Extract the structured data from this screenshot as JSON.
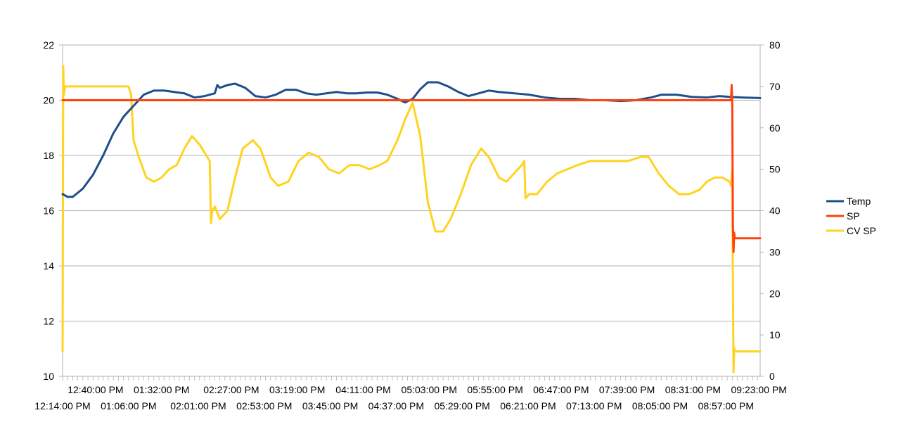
{
  "chart_data": {
    "type": "line",
    "title": "",
    "xlabel": "",
    "ylabel": "",
    "y2label": "",
    "grid": true,
    "legend_position": "right",
    "ylim": [
      10,
      22
    ],
    "y2lim": [
      0,
      80
    ],
    "y_ticks": [
      "10",
      "12",
      "14",
      "16",
      "18",
      "20",
      "22"
    ],
    "y2_ticks": [
      "0",
      "10",
      "20",
      "30",
      "40",
      "50",
      "60",
      "70",
      "80"
    ],
    "x_range": [
      "12:14:00 PM",
      "09:24:00 PM"
    ],
    "x_tick_labels_row1": [
      "12:40:00 PM",
      "01:32:00 PM",
      "02:27:00 PM",
      "03:19:00 PM",
      "04:11:00 PM",
      "05:03:00 PM",
      "05:55:00 PM",
      "06:47:00 PM",
      "07:39:00 PM",
      "08:31:00 PM",
      "09:23:00 PM"
    ],
    "x_tick_labels_row2": [
      "12:14:00 PM",
      "01:06:00 PM",
      "02:01:00 PM",
      "02:53:00 PM",
      "03:45:00 PM",
      "04:37:00 PM",
      "05:29:00 PM",
      "06:21:00 PM",
      "07:13:00 PM",
      "08:05:00 PM",
      "08:57:00 PM"
    ],
    "series": [
      {
        "name": "Temp",
        "axis": "left",
        "color": "#1f4e8c",
        "points": [
          [
            "12:14:00 PM",
            16.6
          ],
          [
            "12:18:00 PM",
            16.5
          ],
          [
            "12:22:00 PM",
            16.5
          ],
          [
            "12:30:00 PM",
            16.8
          ],
          [
            "12:38:00 PM",
            17.3
          ],
          [
            "12:46:00 PM",
            18.0
          ],
          [
            "12:54:00 PM",
            18.8
          ],
          [
            "01:02:00 PM",
            19.4
          ],
          [
            "01:10:00 PM",
            19.8
          ],
          [
            "01:18:00 PM",
            20.2
          ],
          [
            "01:26:00 PM",
            20.35
          ],
          [
            "01:34:00 PM",
            20.35
          ],
          [
            "01:42:00 PM",
            20.3
          ],
          [
            "01:50:00 PM",
            20.25
          ],
          [
            "01:58:00 PM",
            20.1
          ],
          [
            "02:06:00 PM",
            20.15
          ],
          [
            "02:14:00 PM",
            20.25
          ],
          [
            "02:16:00 PM",
            20.55
          ],
          [
            "02:18:00 PM",
            20.45
          ],
          [
            "02:24:00 PM",
            20.55
          ],
          [
            "02:30:00 PM",
            20.6
          ],
          [
            "02:38:00 PM",
            20.45
          ],
          [
            "02:46:00 PM",
            20.15
          ],
          [
            "02:54:00 PM",
            20.1
          ],
          [
            "03:02:00 PM",
            20.2
          ],
          [
            "03:10:00 PM",
            20.38
          ],
          [
            "03:18:00 PM",
            20.38
          ],
          [
            "03:26:00 PM",
            20.25
          ],
          [
            "03:34:00 PM",
            20.2
          ],
          [
            "03:42:00 PM",
            20.25
          ],
          [
            "03:50:00 PM",
            20.3
          ],
          [
            "03:58:00 PM",
            20.25
          ],
          [
            "04:06:00 PM",
            20.25
          ],
          [
            "04:14:00 PM",
            20.28
          ],
          [
            "04:22:00 PM",
            20.28
          ],
          [
            "04:30:00 PM",
            20.2
          ],
          [
            "04:38:00 PM",
            20.05
          ],
          [
            "04:44:00 PM",
            19.92
          ],
          [
            "04:50:00 PM",
            20.05
          ],
          [
            "04:56:00 PM",
            20.4
          ],
          [
            "05:02:00 PM",
            20.65
          ],
          [
            "05:10:00 PM",
            20.65
          ],
          [
            "05:18:00 PM",
            20.5
          ],
          [
            "05:26:00 PM",
            20.3
          ],
          [
            "05:34:00 PM",
            20.15
          ],
          [
            "05:42:00 PM",
            20.25
          ],
          [
            "05:50:00 PM",
            20.35
          ],
          [
            "05:58:00 PM",
            20.3
          ],
          [
            "06:10:00 PM",
            20.25
          ],
          [
            "06:22:00 PM",
            20.2
          ],
          [
            "06:34:00 PM",
            20.1
          ],
          [
            "06:46:00 PM",
            20.05
          ],
          [
            "06:58:00 PM",
            20.05
          ],
          [
            "07:10:00 PM",
            20.0
          ],
          [
            "07:22:00 PM",
            20.0
          ],
          [
            "07:34:00 PM",
            19.97
          ],
          [
            "07:46:00 PM",
            20.0
          ],
          [
            "07:58:00 PM",
            20.1
          ],
          [
            "08:06:00 PM",
            20.2
          ],
          [
            "08:18:00 PM",
            20.2
          ],
          [
            "08:30:00 PM",
            20.12
          ],
          [
            "08:42:00 PM",
            20.1
          ],
          [
            "08:52:00 PM",
            20.15
          ],
          [
            "09:00:00 PM",
            20.12
          ],
          [
            "09:10:00 PM",
            20.1
          ],
          [
            "09:24:00 PM",
            20.08
          ]
        ]
      },
      {
        "name": "SP",
        "axis": "left",
        "color": "#ff420e",
        "points": [
          [
            "12:14:00 PM",
            20.0
          ],
          [
            "09:01:00 PM",
            20.0
          ],
          [
            "09:01:30 PM",
            20.55
          ],
          [
            "09:02:00 PM",
            19.9
          ],
          [
            "09:02:30 PM",
            15.5
          ],
          [
            "09:03:00 PM",
            14.5
          ],
          [
            "09:03:30 PM",
            15.2
          ],
          [
            "09:04:00 PM",
            15.0
          ],
          [
            "09:05:00 PM",
            15.0
          ],
          [
            "09:24:00 PM",
            15.0
          ]
        ]
      },
      {
        "name": "CV SP",
        "axis": "right",
        "color": "#ffd320",
        "points": [
          [
            "12:14:00 PM",
            6
          ],
          [
            "12:14:30 PM",
            75
          ],
          [
            "12:15:00 PM",
            68
          ],
          [
            "12:16:00 PM",
            70
          ],
          [
            "12:20:00 PM",
            70
          ],
          [
            "01:06:00 PM",
            70
          ],
          [
            "01:08:00 PM",
            68
          ],
          [
            "01:10:00 PM",
            57
          ],
          [
            "01:14:00 PM",
            53
          ],
          [
            "01:20:00 PM",
            48
          ],
          [
            "01:26:00 PM",
            47
          ],
          [
            "01:32:00 PM",
            48
          ],
          [
            "01:38:00 PM",
            50
          ],
          [
            "01:44:00 PM",
            51
          ],
          [
            "01:50:00 PM",
            55
          ],
          [
            "01:56:00 PM",
            58
          ],
          [
            "02:02:00 PM",
            56
          ],
          [
            "02:08:00 PM",
            53
          ],
          [
            "02:10:00 PM",
            52
          ],
          [
            "02:11:00 PM",
            37
          ],
          [
            "02:12:00 PM",
            40
          ],
          [
            "02:14:00 PM",
            41
          ],
          [
            "02:18:00 PM",
            38
          ],
          [
            "02:24:00 PM",
            40
          ],
          [
            "02:30:00 PM",
            48
          ],
          [
            "02:36:00 PM",
            55
          ],
          [
            "02:44:00 PM",
            57
          ],
          [
            "02:50:00 PM",
            55
          ],
          [
            "02:58:00 PM",
            48
          ],
          [
            "03:04:00 PM",
            46
          ],
          [
            "03:12:00 PM",
            47
          ],
          [
            "03:20:00 PM",
            52
          ],
          [
            "03:28:00 PM",
            54
          ],
          [
            "03:36:00 PM",
            53
          ],
          [
            "03:44:00 PM",
            50
          ],
          [
            "03:52:00 PM",
            49
          ],
          [
            "04:00:00 PM",
            51
          ],
          [
            "04:08:00 PM",
            51
          ],
          [
            "04:16:00 PM",
            50
          ],
          [
            "04:24:00 PM",
            51
          ],
          [
            "04:30:00 PM",
            52
          ],
          [
            "04:38:00 PM",
            57
          ],
          [
            "04:44:00 PM",
            62
          ],
          [
            "04:50:00 PM",
            66
          ],
          [
            "04:56:00 PM",
            58
          ],
          [
            "05:02:00 PM",
            42
          ],
          [
            "05:08:00 PM",
            35
          ],
          [
            "05:14:00 PM",
            35
          ],
          [
            "05:20:00 PM",
            38
          ],
          [
            "05:28:00 PM",
            44
          ],
          [
            "05:36:00 PM",
            51
          ],
          [
            "05:44:00 PM",
            55
          ],
          [
            "05:50:00 PM",
            53
          ],
          [
            "05:58:00 PM",
            48
          ],
          [
            "06:04:00 PM",
            47
          ],
          [
            "06:10:00 PM",
            49
          ],
          [
            "06:16:00 PM",
            51
          ],
          [
            "06:18:00 PM",
            52
          ],
          [
            "06:19:00 PM",
            43
          ],
          [
            "06:22:00 PM",
            44
          ],
          [
            "06:28:00 PM",
            44
          ],
          [
            "06:36:00 PM",
            47
          ],
          [
            "06:44:00 PM",
            49
          ],
          [
            "06:52:00 PM",
            50
          ],
          [
            "07:00:00 PM",
            51
          ],
          [
            "07:10:00 PM",
            52
          ],
          [
            "07:20:00 PM",
            52
          ],
          [
            "07:30:00 PM",
            52
          ],
          [
            "07:40:00 PM",
            52
          ],
          [
            "07:50:00 PM",
            53
          ],
          [
            "07:56:00 PM",
            53
          ],
          [
            "08:04:00 PM",
            49
          ],
          [
            "08:12:00 PM",
            46
          ],
          [
            "08:20:00 PM",
            44
          ],
          [
            "08:28:00 PM",
            44
          ],
          [
            "08:36:00 PM",
            45
          ],
          [
            "08:42:00 PM",
            47
          ],
          [
            "08:48:00 PM",
            48
          ],
          [
            "08:54:00 PM",
            48
          ],
          [
            "09:00:00 PM",
            47
          ],
          [
            "09:01:00 PM",
            46
          ],
          [
            "09:02:00 PM",
            50
          ],
          [
            "09:02:30 PM",
            22
          ],
          [
            "09:03:00 PM",
            1
          ],
          [
            "09:03:30 PM",
            7
          ],
          [
            "09:04:00 PM",
            6
          ],
          [
            "09:05:00 PM",
            6
          ],
          [
            "09:24:00 PM",
            6
          ]
        ]
      }
    ]
  }
}
